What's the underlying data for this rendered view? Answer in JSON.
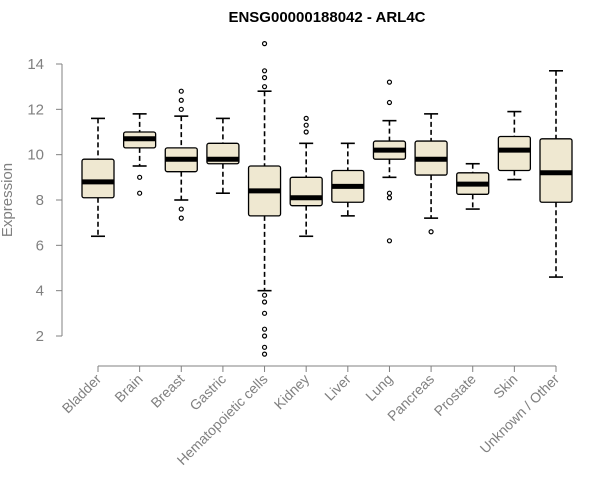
{
  "chart_data": {
    "type": "boxplot",
    "title": "ENSG00000188042 - ARL4C",
    "xlabel": "",
    "ylabel": "Expression",
    "ylim": [
      1,
      15
    ],
    "yticks": [
      2,
      4,
      6,
      8,
      10,
      12,
      14
    ],
    "categories": [
      "Bladder",
      "Brain",
      "Breast",
      "Gastric",
      "Hematopoietic cells",
      "Kidney",
      "Liver",
      "Lung",
      "Pancreas",
      "Prostate",
      "Skin",
      "Unknown / Other"
    ],
    "series": [
      {
        "name": "Bladder",
        "min": 6.4,
        "q1": 8.1,
        "median": 8.8,
        "q3": 9.8,
        "max": 11.6,
        "outliers": []
      },
      {
        "name": "Brain",
        "min": 9.5,
        "q1": 10.3,
        "median": 10.7,
        "q3": 11.0,
        "max": 11.8,
        "outliers": [
          9.0,
          8.3
        ]
      },
      {
        "name": "Breast",
        "min": 8.0,
        "q1": 9.25,
        "median": 9.8,
        "q3": 10.3,
        "max": 11.7,
        "outliers": [
          12.0,
          12.4,
          12.8,
          7.6,
          7.2
        ]
      },
      {
        "name": "Gastric",
        "min": 8.3,
        "q1": 9.6,
        "median": 9.8,
        "q3": 10.5,
        "max": 11.6,
        "outliers": []
      },
      {
        "name": "Hematopoietic cells",
        "min": 4.0,
        "q1": 7.3,
        "median": 8.4,
        "q3": 9.5,
        "max": 12.8,
        "outliers": [
          14.9,
          13.7,
          13.4,
          13.0,
          3.8,
          3.5,
          3.0,
          2.3,
          2.0,
          1.5,
          1.2
        ]
      },
      {
        "name": "Kidney",
        "min": 6.4,
        "q1": 7.75,
        "median": 8.1,
        "q3": 9.0,
        "max": 10.5,
        "outliers": [
          11.6,
          11.3,
          11.0
        ]
      },
      {
        "name": "Liver",
        "min": 7.3,
        "q1": 7.9,
        "median": 8.6,
        "q3": 9.3,
        "max": 10.5,
        "outliers": []
      },
      {
        "name": "Lung",
        "min": 9.0,
        "q1": 9.8,
        "median": 10.2,
        "q3": 10.6,
        "max": 11.5,
        "outliers": [
          13.2,
          12.3,
          8.3,
          8.1,
          6.2
        ]
      },
      {
        "name": "Pancreas",
        "min": 7.2,
        "q1": 9.1,
        "median": 9.8,
        "q3": 10.6,
        "max": 11.8,
        "outliers": [
          6.6
        ]
      },
      {
        "name": "Prostate",
        "min": 7.6,
        "q1": 8.25,
        "median": 8.7,
        "q3": 9.2,
        "max": 9.6,
        "outliers": []
      },
      {
        "name": "Skin",
        "min": 8.9,
        "q1": 9.3,
        "median": 10.2,
        "q3": 10.8,
        "max": 11.9,
        "outliers": []
      },
      {
        "name": "Unknown / Other",
        "min": 4.6,
        "q1": 7.9,
        "median": 9.2,
        "q3": 10.7,
        "max": 13.7,
        "outliers": []
      }
    ],
    "colors": {
      "box_fill": "#efe8d1",
      "box_stroke": "#000000",
      "axis": "#808080",
      "text_muted": "#808080"
    }
  }
}
